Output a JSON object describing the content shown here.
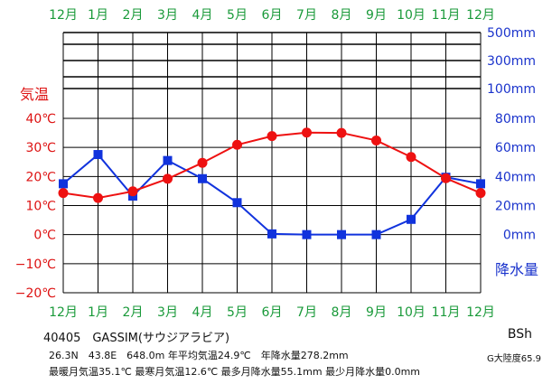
{
  "months": [
    "12月",
    "1月",
    "2月",
    "3月",
    "4月",
    "5月",
    "6月",
    "7月",
    "8月",
    "9月",
    "10月",
    "11月",
    "12月"
  ],
  "temp_axis_title": "気温",
  "prec_axis_title": "降水量",
  "temp_ticks": [
    "40℃",
    "30℃",
    "20℃",
    "10℃",
    "0℃",
    "−10℃",
    "−20℃"
  ],
  "prec_ticks": [
    "500mm",
    "300mm",
    "100mm",
    "80mm",
    "60mm",
    "40mm",
    "20mm",
    "0mm"
  ],
  "station": "40405　GASSIM(サウジアラビア)",
  "info_line1": "26.3N　43.8E　648.0m 年平均気温24.9℃　年降水量278.2mm",
  "info_line2": "最暖月気温35.1℃ 最寒月気温12.6℃ 最多月降水量55.1mm 最少月降水量0.0mm",
  "climate_code": "BSh",
  "continent": "G大陸度65.9",
  "colors": {
    "temperature": "#ee1111",
    "precipitation": "#1133dd",
    "months": "#1a9a3a",
    "grid": "#000000"
  },
  "chart_data": {
    "type": "line",
    "categories": [
      "12月",
      "1月",
      "2月",
      "3月",
      "4月",
      "5月",
      "6月",
      "7月",
      "8月",
      "9月",
      "10月",
      "11月",
      "12月"
    ],
    "series": [
      {
        "name": "気温",
        "unit": "℃",
        "axis": "left",
        "values": [
          14.3,
          12.6,
          14.9,
          19.2,
          24.7,
          30.9,
          33.9,
          35.1,
          35.0,
          32.4,
          26.7,
          19.4,
          14.3
        ]
      },
      {
        "name": "降水量",
        "unit": "mm",
        "axis": "right",
        "values": [
          35.0,
          55.1,
          26.5,
          51.0,
          38.5,
          22.0,
          0.5,
          0.0,
          0.0,
          0.0,
          10.5,
          39.5,
          35.0
        ]
      }
    ],
    "temp_ylim": [
      -20,
      40
    ],
    "prec_ylim": [
      0,
      80
    ],
    "prec_upper_ticks": [
      100,
      300,
      500
    ],
    "grid": true
  }
}
